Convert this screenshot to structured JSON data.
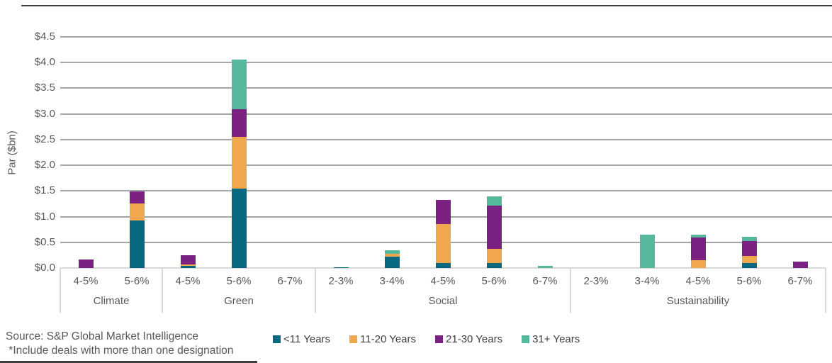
{
  "chart_data": {
    "type": "bar",
    "stacked": true,
    "ylabel": "Par ($bn)",
    "ylim": [
      0,
      4.5
    ],
    "y_tick_step": 0.5,
    "y_tick_format": "$#.#",
    "grid": true,
    "legend_position": "bottom",
    "series_names": [
      "<11 Years",
      "11-20 Years",
      "21-30 Years",
      "31+ Years"
    ],
    "series_colors": [
      "#07687f",
      "#f0a74e",
      "#7b2181",
      "#55b79b"
    ],
    "groups": [
      {
        "label": "Climate",
        "bars": [
          {
            "label": "4-5%",
            "values": [
              0,
              0,
              0.17,
              0
            ]
          },
          {
            "label": "5-6%",
            "values": [
              0.93,
              0.33,
              0.23,
              0
            ]
          }
        ]
      },
      {
        "label": "Green",
        "bars": [
          {
            "label": "4-5%",
            "values": [
              0.04,
              0.03,
              0.18,
              0
            ]
          },
          {
            "label": "5-6%",
            "values": [
              1.55,
              1.01,
              0.53,
              0.97
            ]
          },
          {
            "label": "6-7%",
            "values": [
              0,
              0,
              0,
              0
            ]
          }
        ]
      },
      {
        "label": "Social",
        "bars": [
          {
            "label": "2-3%",
            "values": [
              0.02,
              0,
              0,
              0
            ]
          },
          {
            "label": "3-4%",
            "values": [
              0.22,
              0.05,
              0,
              0.08
            ]
          },
          {
            "label": "4-5%",
            "values": [
              0.1,
              0.75,
              0.48,
              0
            ]
          },
          {
            "label": "5-6%",
            "values": [
              0.09,
              0.28,
              0.85,
              0.18
            ]
          },
          {
            "label": "6-7%",
            "values": [
              0,
              0,
              0,
              0.04
            ]
          }
        ]
      },
      {
        "label": "Sustainability",
        "bars": [
          {
            "label": "2-3%",
            "values": [
              0,
              0,
              0,
              0
            ]
          },
          {
            "label": "3-4%",
            "values": [
              0,
              0,
              0,
              0.65
            ]
          },
          {
            "label": "4-5%",
            "values": [
              0,
              0.15,
              0.45,
              0.05
            ]
          },
          {
            "label": "5-6%",
            "values": [
              0.1,
              0.13,
              0.3,
              0.08
            ]
          },
          {
            "label": "6-7%",
            "values": [
              0,
              0,
              0.13,
              0
            ]
          }
        ]
      }
    ]
  },
  "footer": {
    "source": "Source: S&P Global Market Intelligence",
    "note": " *Include deals with more than one designation"
  },
  "style": {
    "gridline_color": "#a6a6a6",
    "axis_band_color": "#d9d9d9",
    "text_color": "#595959",
    "rule_color": "#3f3f3f"
  }
}
